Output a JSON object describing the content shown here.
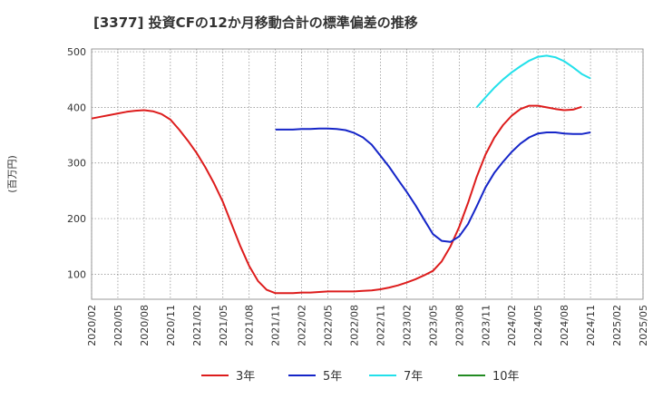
{
  "chart_data": {
    "type": "line",
    "title": "[3377]  投資CFの12か月移動合計の標準偏差の推移",
    "ylabel": "(百万円)",
    "xlabel": "",
    "ylim": [
      55,
      505
    ],
    "yticks": [
      100,
      200,
      300,
      400,
      500
    ],
    "x_start": "2020/02",
    "x_end": "2025/05",
    "xticks": [
      "2020/02",
      "2020/05",
      "2020/08",
      "2020/11",
      "2021/02",
      "2021/05",
      "2021/08",
      "2021/11",
      "2022/02",
      "2022/05",
      "2022/08",
      "2022/11",
      "2023/02",
      "2023/05",
      "2023/08",
      "2023/11",
      "2024/02",
      "2024/05",
      "2024/08",
      "2024/11",
      "2025/02",
      "2025/05"
    ],
    "grid": true,
    "legend_position": "bottom",
    "series": [
      {
        "name": "3年",
        "color": "#dd1c1c",
        "points": [
          [
            "2020/02",
            380
          ],
          [
            "2020/03",
            383
          ],
          [
            "2020/04",
            386
          ],
          [
            "2020/05",
            389
          ],
          [
            "2020/06",
            392
          ],
          [
            "2020/07",
            394
          ],
          [
            "2020/08",
            395
          ],
          [
            "2020/09",
            393
          ],
          [
            "2020/10",
            388
          ],
          [
            "2020/11",
            378
          ],
          [
            "2020/12",
            360
          ],
          [
            "2021/01",
            340
          ],
          [
            "2021/02",
            318
          ],
          [
            "2021/03",
            292
          ],
          [
            "2021/04",
            263
          ],
          [
            "2021/05",
            230
          ],
          [
            "2021/06",
            190
          ],
          [
            "2021/07",
            150
          ],
          [
            "2021/08",
            115
          ],
          [
            "2021/09",
            88
          ],
          [
            "2021/10",
            72
          ],
          [
            "2021/11",
            66
          ],
          [
            "2021/12",
            66
          ],
          [
            "2022/01",
            66
          ],
          [
            "2022/02",
            67
          ],
          [
            "2022/03",
            67
          ],
          [
            "2022/04",
            68
          ],
          [
            "2022/05",
            69
          ],
          [
            "2022/06",
            69
          ],
          [
            "2022/07",
            69
          ],
          [
            "2022/08",
            69
          ],
          [
            "2022/09",
            70
          ],
          [
            "2022/10",
            71
          ],
          [
            "2022/11",
            73
          ],
          [
            "2022/12",
            76
          ],
          [
            "2023/01",
            80
          ],
          [
            "2023/02",
            85
          ],
          [
            "2023/03",
            91
          ],
          [
            "2023/04",
            98
          ],
          [
            "2023/05",
            106
          ],
          [
            "2023/06",
            123
          ],
          [
            "2023/07",
            150
          ],
          [
            "2023/08",
            185
          ],
          [
            "2023/09",
            228
          ],
          [
            "2023/10",
            275
          ],
          [
            "2023/11",
            315
          ],
          [
            "2023/12",
            345
          ],
          [
            "2024/01",
            368
          ],
          [
            "2024/02",
            385
          ],
          [
            "2024/03",
            397
          ],
          [
            "2024/04",
            403
          ],
          [
            "2024/05",
            403
          ],
          [
            "2024/06",
            400
          ],
          [
            "2024/07",
            397
          ],
          [
            "2024/08",
            395
          ],
          [
            "2024/09",
            396
          ],
          [
            "2024/10",
            401
          ]
        ]
      },
      {
        "name": "5年",
        "color": "#1525c8",
        "points": [
          [
            "2021/11",
            360
          ],
          [
            "2021/12",
            360
          ],
          [
            "2022/01",
            360
          ],
          [
            "2022/02",
            361
          ],
          [
            "2022/03",
            361
          ],
          [
            "2022/04",
            362
          ],
          [
            "2022/05",
            362
          ],
          [
            "2022/06",
            361
          ],
          [
            "2022/07",
            359
          ],
          [
            "2022/08",
            354
          ],
          [
            "2022/09",
            346
          ],
          [
            "2022/10",
            333
          ],
          [
            "2022/11",
            313
          ],
          [
            "2022/12",
            293
          ],
          [
            "2023/01",
            270
          ],
          [
            "2023/02",
            248
          ],
          [
            "2023/03",
            224
          ],
          [
            "2023/04",
            198
          ],
          [
            "2023/05",
            172
          ],
          [
            "2023/06",
            160
          ],
          [
            "2023/07",
            158
          ],
          [
            "2023/08",
            168
          ],
          [
            "2023/09",
            190
          ],
          [
            "2023/10",
            222
          ],
          [
            "2023/11",
            256
          ],
          [
            "2023/12",
            282
          ],
          [
            "2024/01",
            302
          ],
          [
            "2024/02",
            320
          ],
          [
            "2024/03",
            335
          ],
          [
            "2024/04",
            346
          ],
          [
            "2024/05",
            353
          ],
          [
            "2024/06",
            355
          ],
          [
            "2024/07",
            355
          ],
          [
            "2024/08",
            353
          ],
          [
            "2024/09",
            352
          ],
          [
            "2024/10",
            352
          ],
          [
            "2024/11",
            355
          ]
        ]
      },
      {
        "name": "7年",
        "color": "#22e0ea",
        "points": [
          [
            "2023/10",
            400
          ],
          [
            "2023/11",
            418
          ],
          [
            "2023/12",
            435
          ],
          [
            "2024/01",
            450
          ],
          [
            "2024/02",
            463
          ],
          [
            "2024/03",
            474
          ],
          [
            "2024/04",
            484
          ],
          [
            "2024/05",
            491
          ],
          [
            "2024/06",
            493
          ],
          [
            "2024/07",
            490
          ],
          [
            "2024/08",
            483
          ],
          [
            "2024/09",
            472
          ],
          [
            "2024/10",
            460
          ],
          [
            "2024/11",
            452
          ]
        ]
      },
      {
        "name": "10年",
        "color": "#228b22",
        "points": []
      }
    ]
  }
}
